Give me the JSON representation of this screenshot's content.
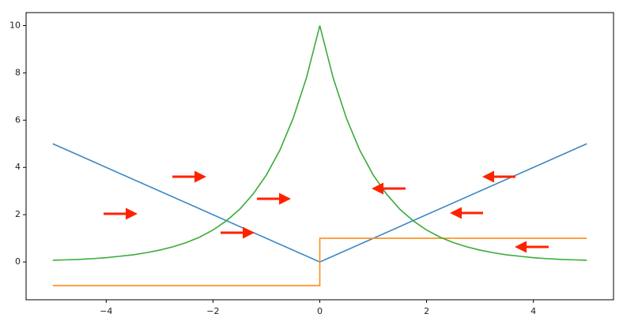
{
  "chart_data": {
    "type": "line",
    "xlim": [
      -5.5,
      5.5
    ],
    "ylim": [
      -1.6,
      10.55
    ],
    "xticks": [
      {
        "value": -4,
        "label": "−4"
      },
      {
        "value": -2,
        "label": "−2"
      },
      0,
      2,
      4
    ],
    "yticks": [
      0,
      2,
      4,
      6,
      8,
      10
    ],
    "grid": false,
    "series": [
      {
        "color": "#3b87c4",
        "x": [
          -5,
          0,
          5
        ],
        "values": [
          5,
          0,
          5
        ]
      },
      {
        "color": "#ff8c1a",
        "x": [
          -5,
          0,
          0,
          5
        ],
        "values": [
          -1,
          -1,
          1,
          1
        ]
      },
      {
        "color": "#3aab3a",
        "x": [
          -5,
          -4.75,
          -4.5,
          -4.25,
          -4,
          -3.75,
          -3.5,
          -3.25,
          -3,
          -2.75,
          -2.5,
          -2.25,
          -2,
          -1.75,
          -1.5,
          -1.25,
          -1,
          -0.75,
          -0.5,
          -0.25,
          0,
          0.25,
          0.5,
          0.75,
          1,
          1.25,
          1.5,
          1.75,
          2,
          2.25,
          2.5,
          2.75,
          3,
          3.25,
          3.5,
          3.75,
          4,
          4.25,
          4.5,
          4.75,
          5
        ],
        "values": [
          0.07,
          0.09,
          0.11,
          0.14,
          0.18,
          0.24,
          0.3,
          0.39,
          0.5,
          0.64,
          0.82,
          1.05,
          1.35,
          1.74,
          2.23,
          2.87,
          3.68,
          4.72,
          6.07,
          7.79,
          10,
          7.79,
          6.07,
          4.72,
          3.68,
          2.87,
          2.23,
          1.74,
          1.35,
          1.05,
          0.82,
          0.64,
          0.5,
          0.39,
          0.3,
          0.24,
          0.18,
          0.14,
          0.11,
          0.09,
          0.07
        ]
      }
    ]
  }
}
